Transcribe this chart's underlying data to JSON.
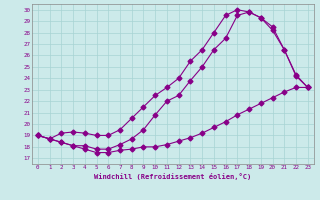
{
  "xlabel": "Windchill (Refroidissement éolien,°C)",
  "bg_color": "#cceaea",
  "grid_color": "#a8d4d4",
  "line_color": "#880088",
  "spine_color": "#888888",
  "xlim": [
    -0.5,
    23.5
  ],
  "ylim": [
    16.5,
    30.5
  ],
  "xticks": [
    0,
    1,
    2,
    3,
    4,
    5,
    6,
    7,
    8,
    9,
    10,
    11,
    12,
    13,
    14,
    15,
    16,
    17,
    18,
    19,
    20,
    21,
    22,
    23
  ],
  "yticks": [
    17,
    18,
    19,
    20,
    21,
    22,
    23,
    24,
    25,
    26,
    27,
    28,
    29,
    30
  ],
  "curve1_x": [
    0,
    1,
    2,
    3,
    4,
    5,
    6,
    7,
    8,
    9,
    10,
    11,
    12,
    13,
    14,
    15,
    16,
    17,
    18,
    19,
    20,
    21,
    22,
    23
  ],
  "curve1_y": [
    19.0,
    18.7,
    18.4,
    18.1,
    17.8,
    17.5,
    17.5,
    17.7,
    17.8,
    18.0,
    18.0,
    18.2,
    18.5,
    18.8,
    19.2,
    19.7,
    20.2,
    20.8,
    21.3,
    21.8,
    22.3,
    22.8,
    23.2,
    23.2
  ],
  "curve2_x": [
    0,
    1,
    2,
    3,
    4,
    5,
    6,
    7,
    8,
    9,
    10,
    11,
    12,
    13,
    14,
    15,
    16,
    17,
    18,
    19,
    20,
    21,
    22,
    23
  ],
  "curve2_y": [
    19.0,
    18.7,
    18.4,
    18.1,
    18.1,
    17.8,
    17.8,
    18.2,
    18.7,
    19.5,
    20.8,
    22.0,
    22.5,
    23.8,
    25.0,
    26.5,
    27.5,
    29.5,
    29.8,
    29.3,
    28.5,
    26.5,
    24.2,
    23.2
  ],
  "curve3_x": [
    0,
    1,
    2,
    3,
    4,
    5,
    6,
    7,
    8,
    9,
    10,
    11,
    12,
    13,
    14,
    15,
    16,
    17,
    18,
    19,
    20,
    21,
    22,
    23
  ],
  "curve3_y": [
    19.0,
    18.7,
    19.2,
    19.3,
    19.2,
    19.0,
    19.0,
    19.5,
    20.5,
    21.5,
    22.5,
    23.2,
    24.0,
    25.5,
    26.5,
    28.0,
    29.5,
    30.0,
    29.8,
    29.3,
    28.2,
    26.5,
    24.3,
    23.2
  ]
}
